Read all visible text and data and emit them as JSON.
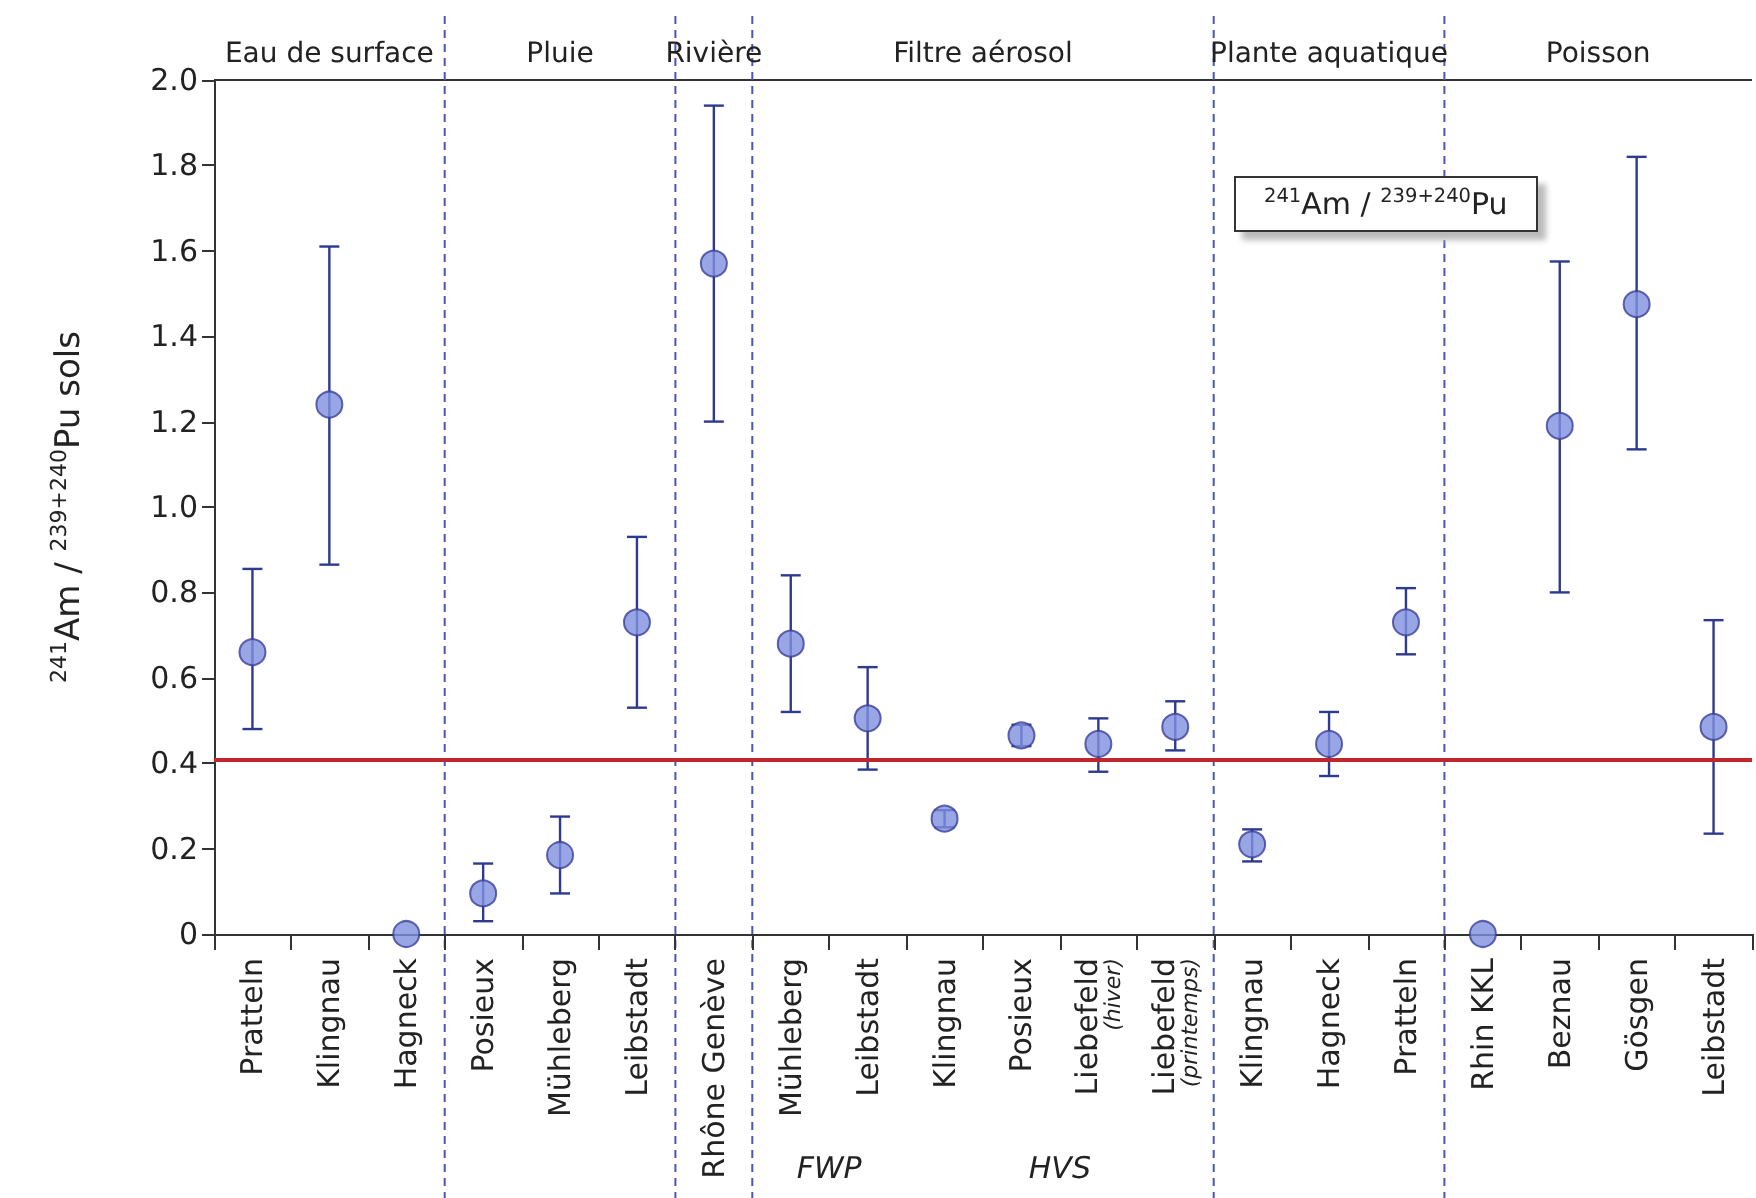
{
  "chart_data": {
    "type": "scatter",
    "ylabel": "$^{241}$Am / $^{239+240}$Pu sols",
    "categories": [
      "Pratteln",
      "Klingnau",
      "Hagneck",
      "Posieux",
      "Mühleberg",
      "Leibstadt",
      "Rhône Genève",
      "Mühleberg",
      "Leibstadt",
      "Klingnau",
      "Posieux",
      "Liebefeld (hiver)",
      "Liebefeld (printemps)",
      "Klingnau",
      "Hagneck",
      "Pratteln",
      "Rhin KKL",
      "Beznau",
      "Gösgen",
      "Leibstadt"
    ],
    "series": [
      {
        "color": "#8090e0",
        "values": [
          0.66,
          1.24,
          0,
          0.095,
          0.185,
          0.73,
          1.57,
          0.68,
          0.505,
          0.27,
          0.465,
          0.445,
          0.485,
          0.21,
          0.445,
          0.73,
          0,
          1.19,
          1.475,
          0.485
        ],
        "errors": [
          [
            0.48,
            0.855
          ],
          [
            0.865,
            1.61
          ],
          null,
          [
            0.03,
            0.165
          ],
          [
            0.095,
            0.275
          ],
          [
            0.53,
            0.93
          ],
          [
            1.2,
            1.94
          ],
          [
            0.52,
            0.84
          ],
          [
            0.385,
            0.625
          ],
          [
            0.25,
            0.29
          ],
          [
            0.44,
            0.49
          ],
          [
            0.38,
            0.505
          ],
          [
            0.43,
            0.545
          ],
          [
            0.17,
            0.245
          ],
          [
            0.37,
            0.52
          ],
          [
            0.655,
            0.81
          ],
          null,
          [
            0.8,
            1.575
          ],
          [
            1.135,
            1.82
          ],
          [
            0.235,
            0.735
          ]
        ]
      }
    ],
    "ylim": [
      0,
      2
    ],
    "yticks": [
      0,
      0.2,
      0.4,
      0.6,
      0.8,
      {
        "value": 1,
        "label": "1.0"
      },
      1.2,
      1.4,
      1.6,
      1.8,
      {
        "value": 2,
        "label": "2.0"
      }
    ],
    "grid": false,
    "marker": "circle",
    "ref_lines": [
      {
        "axis": "y",
        "value": 0.405,
        "color": "#c0272d"
      }
    ],
    "annotations": [
      "Eau de surface",
      "Pluie",
      "Rivière",
      "Filtre aérosol",
      "Plante aquatique",
      "Poisson",
      "$^{241}$Am / $^{239+240}$Pu",
      "FWP",
      "HVS"
    ]
  }
}
